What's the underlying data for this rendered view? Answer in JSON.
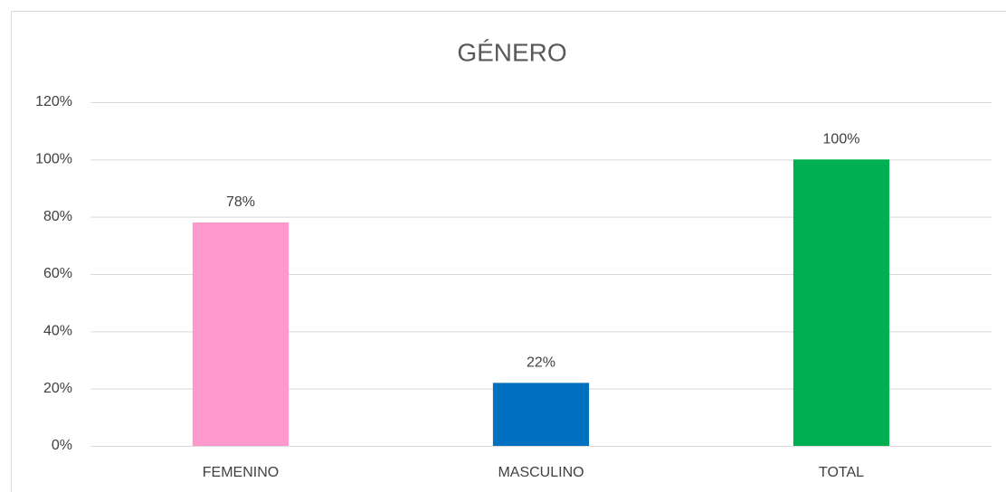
{
  "chart_data": {
    "type": "bar",
    "title": "GÉNERO",
    "categories": [
      "FEMENINO",
      "MASCULINO",
      "TOTAL"
    ],
    "values": [
      78,
      22,
      100
    ],
    "value_labels": [
      "78%",
      "22%",
      "100%"
    ],
    "colors": [
      "#ff99cc",
      "#0070c0",
      "#00b050"
    ],
    "ylim": [
      0,
      120
    ],
    "yticks": [
      {
        "value": 0,
        "label": "0%"
      },
      {
        "value": 20,
        "label": "20%"
      },
      {
        "value": 40,
        "label": "40%"
      },
      {
        "value": 60,
        "label": "60%"
      },
      {
        "value": 80,
        "label": "80%"
      },
      {
        "value": 100,
        "label": "100%"
      },
      {
        "value": 120,
        "label": "120%"
      }
    ],
    "grid": true
  }
}
